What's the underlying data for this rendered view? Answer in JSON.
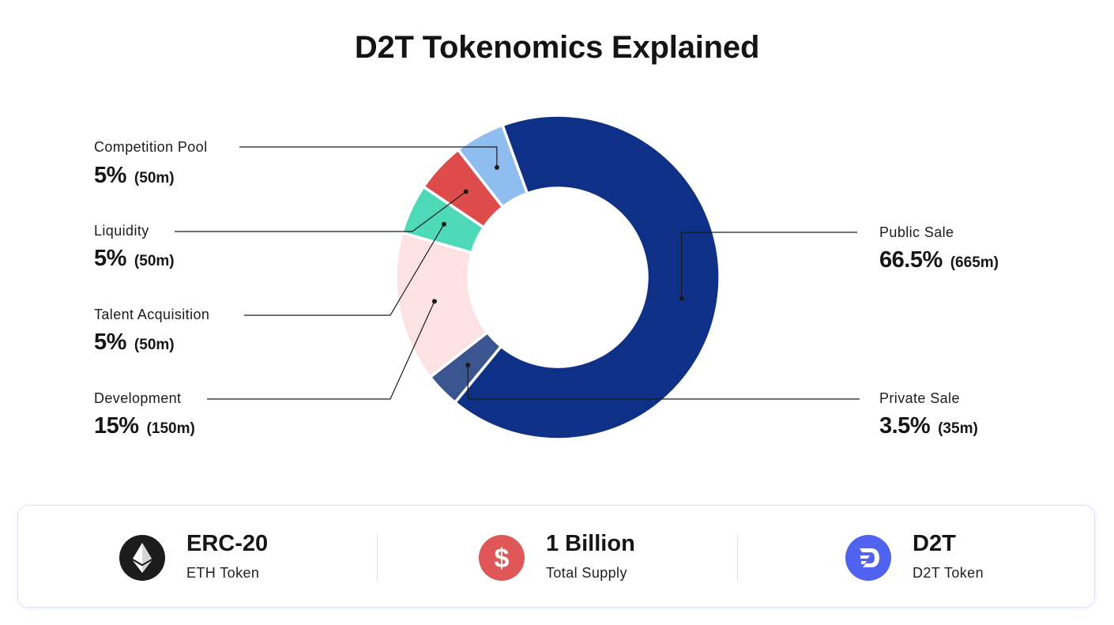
{
  "title": "D2T Tokenomics Explained",
  "chart_data": {
    "type": "pie",
    "variant": "donut",
    "title": "D2T Tokenomics Explained",
    "slices": [
      {
        "label": "Public Sale",
        "percent": 66.5,
        "amount": "(665m)",
        "percent_label": "66.5%",
        "color": "#0e3187"
      },
      {
        "label": "Private Sale",
        "percent": 3.5,
        "amount": "(35m)",
        "percent_label": "3.5%",
        "color": "#3b5590"
      },
      {
        "label": "Development",
        "percent": 15,
        "amount": "(150m)",
        "percent_label": "15%",
        "color": "#fde2e4"
      },
      {
        "label": "Talent Acquisition",
        "percent": 5,
        "amount": "(50m)",
        "percent_label": "5%",
        "color": "#4ed9b9"
      },
      {
        "label": "Liquidity",
        "percent": 5,
        "amount": "(50m)",
        "percent_label": "5%",
        "color": "#de4b4b"
      },
      {
        "label": "Competition Pool",
        "percent": 5,
        "amount": "(50m)",
        "percent_label": "5%",
        "color": "#8fbdf0"
      }
    ]
  },
  "info": [
    {
      "value": "ERC-20",
      "label": "ETH Token",
      "icon": "ethereum-icon",
      "color": "#1a1a1a"
    },
    {
      "value": "1 Billion",
      "label": "Total Supply",
      "icon": "dollar-icon",
      "color": "#e05757"
    },
    {
      "value": "D2T",
      "label": "D2T Token",
      "icon": "d2t-logo-icon",
      "color": "#4f63f0"
    }
  ]
}
